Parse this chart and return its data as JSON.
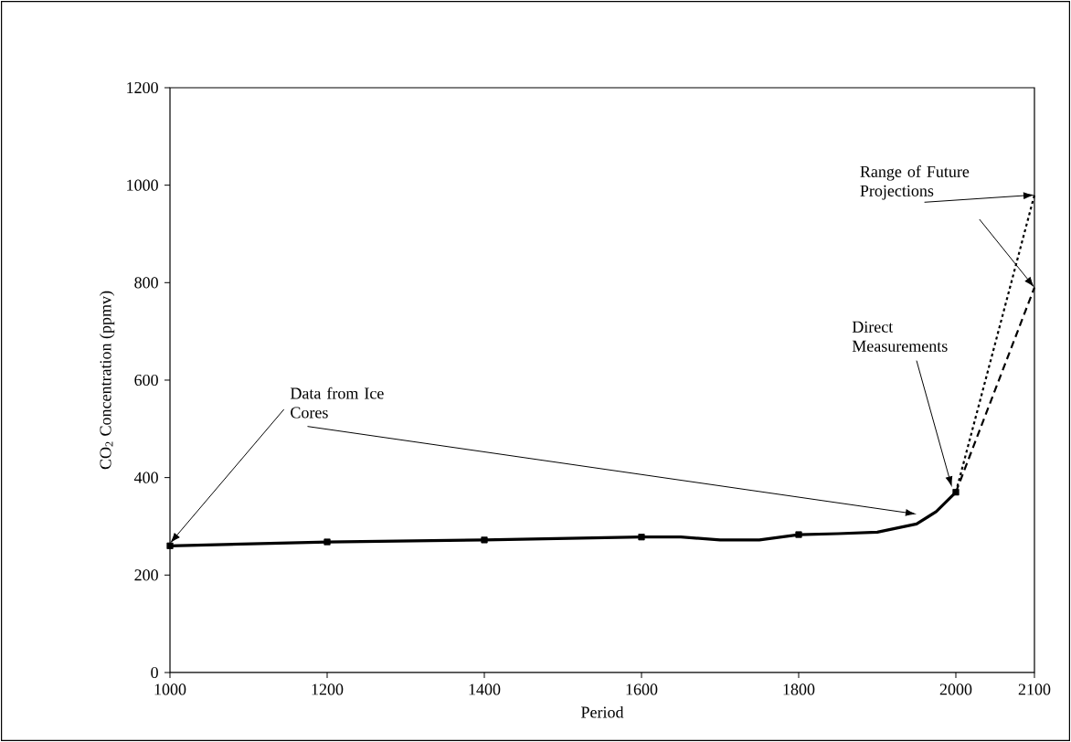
{
  "chart_data": {
    "type": "line",
    "xlabel": "Period",
    "ylabel": "CO$_{2}$ Concentration (ppmv)",
    "xlim": [
      1000,
      2100
    ],
    "xticks": [
      1000,
      1200,
      1400,
      1600,
      1800,
      2000,
      2100
    ],
    "ylim": [
      0,
      1200
    ],
    "yticks": [
      0,
      200,
      400,
      600,
      800,
      1000,
      1200
    ],
    "series": [
      {
        "color": "#000000",
        "line_style": "solid",
        "marker": "none",
        "x": [
          1000,
          1200,
          1400,
          1600,
          1650,
          1700,
          1750,
          1800,
          1850,
          1900,
          1950,
          1975,
          2000
        ],
        "values": [
          260,
          268,
          272,
          278,
          278,
          272,
          272,
          283,
          285,
          288,
          305,
          330,
          370
        ]
      },
      {
        "type": "scatter",
        "color": "#000000",
        "marker": "square",
        "x": [
          1000,
          1200,
          1400,
          1600,
          1800,
          2000
        ],
        "values": [
          260,
          268,
          272,
          278,
          283,
          370
        ]
      },
      {
        "color": "#000000",
        "line_style": "dotted",
        "marker": "none",
        "x": [
          2000,
          2100
        ],
        "values": [
          370,
          980
        ]
      },
      {
        "color": "#000000",
        "line_style": "dashed",
        "marker": "none",
        "x": [
          2000,
          2100
        ],
        "values": [
          370,
          790
        ]
      }
    ],
    "annotations": [
      {
        "text": "Data from Ice Cores",
        "x": 1000,
        "y": 265
      },
      {
        "text": "Direct Measurements",
        "x": 1995,
        "y": 380
      },
      {
        "text": "Range of Future Projections",
        "x": 2100,
        "y": 980
      }
    ]
  }
}
